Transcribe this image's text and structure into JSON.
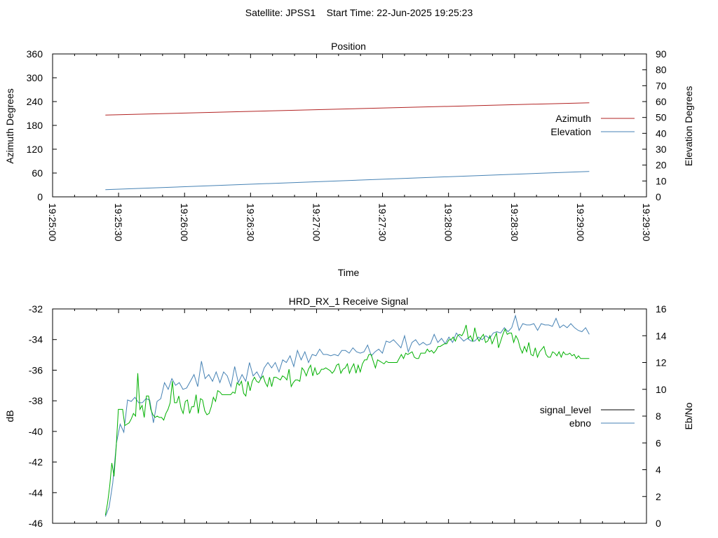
{
  "header": {
    "title": "Satellite: JPSS1    Start Time: 22-Jun-2025 19:25:23"
  },
  "chart_data": [
    {
      "type": "line",
      "title": "Position",
      "xlabel": "Time",
      "ylabel": "Azimuth Degrees",
      "y2label": "Elevation Degrees",
      "xlim": [
        "19:25:00",
        "19:29:30"
      ],
      "ylim": [
        0,
        360
      ],
      "y2lim": [
        0,
        90
      ],
      "x_ticks": [
        "19:25:00",
        "19:25:30",
        "19:26:00",
        "19:26:30",
        "19:27:00",
        "19:27:30",
        "19:28:00",
        "19:28:30",
        "19:29:00",
        "19:29:30"
      ],
      "y_ticks": [
        "0",
        "60",
        "120",
        "180",
        "240",
        "300",
        "360"
      ],
      "y2_ticks": [
        "0",
        "10",
        "20",
        "30",
        "40",
        "50",
        "60",
        "70",
        "80",
        "90"
      ],
      "legend_position": "right",
      "grid": false,
      "series": [
        {
          "name": "Azimuth",
          "axis": "left",
          "color": "#b22222",
          "x": [
            "19:25:24",
            "19:29:04"
          ],
          "values": [
            206,
            237
          ]
        },
        {
          "name": "Elevation",
          "axis": "right",
          "color": "#4682b4",
          "x": [
            "19:25:24",
            "19:29:04"
          ],
          "values": [
            4.5,
            16
          ]
        }
      ]
    },
    {
      "type": "line",
      "title": "HRD_RX_1 Receive Signal",
      "ylabel": "dB",
      "y2label": "Eb/No",
      "ylim": [
        -46,
        -32
      ],
      "y2lim": [
        0,
        16
      ],
      "y_ticks": [
        "-32",
        "-34",
        "-36",
        "-38",
        "-40",
        "-42",
        "-44",
        "-46"
      ],
      "y2_ticks": [
        "0",
        "2",
        "4",
        "6",
        "8",
        "10",
        "12",
        "14",
        "16"
      ],
      "x_range": [
        "19:25:00",
        "19:29:30"
      ],
      "x_start": "19:25:24",
      "x_step_seconds": 2,
      "legend_position": "right",
      "grid": false,
      "series": [
        {
          "name": "signal_level",
          "axis": "left",
          "color": "#000000",
          "legend_only": true,
          "values": []
        },
        {
          "name": "ebno",
          "axis": "right",
          "color": "#4682b4",
          "values": [
            0.5,
            1.2,
            3.0,
            6.0,
            7.4,
            6.8,
            9.2,
            9.1,
            9.4,
            9.0,
            9.0,
            9.3,
            9.2,
            7.5,
            9.1,
            9.3,
            10.5,
            10.0,
            10.8,
            10.3,
            10.5,
            10.0,
            10.1,
            10.6,
            11.1,
            10.2,
            12.1,
            10.8,
            11.1,
            10.6,
            11.3,
            10.5,
            11.3,
            11.0,
            10.2,
            11.7,
            10.5,
            11.1,
            10.6,
            12.0,
            11.0,
            11.3,
            10.8,
            11.6,
            12.0,
            11.6,
            12.0,
            11.3,
            12.2,
            12.0,
            12.5,
            11.7,
            12.9,
            12.2,
            12.8,
            12.0,
            12.6,
            12.5,
            13.0,
            12.6,
            12.6,
            12.5,
            12.6,
            12.5,
            12.9,
            12.9,
            12.7,
            13.1,
            12.8,
            12.7,
            12.8,
            13.3,
            12.5,
            12.8,
            13.0,
            12.7,
            13.6,
            13.5,
            13.7,
            13.4,
            13.1,
            14.0,
            12.8,
            13.5,
            13.7,
            13.3,
            13.5,
            13.3,
            13.4,
            14.1,
            13.5,
            13.8,
            13.4,
            13.9,
            13.5,
            14.2,
            13.9,
            13.6,
            13.8,
            13.6,
            13.6,
            13.9,
            13.7,
            14.0,
            13.8,
            14.2,
            14.3,
            14.2,
            14.6,
            14.3,
            14.6,
            15.5,
            14.4,
            14.9,
            14.8,
            14.8,
            14.9,
            14.4,
            14.9,
            14.8,
            14.8,
            14.7,
            15.3,
            14.6,
            14.8,
            14.6,
            14.9,
            14.6,
            14.4,
            14.3,
            14.6,
            14.1
          ]
        },
        {
          "name": "",
          "axis": "right",
          "color": "#00b000",
          "legend_only": false,
          "values": [
            0.6,
            1.5,
            2.8,
            4.5,
            3.5,
            5.7,
            8.5,
            8.5,
            8.5,
            7.3,
            7.4,
            7.5,
            7.8,
            8.2,
            8.0,
            11.2,
            8.5,
            8.8,
            7.9,
            9.5,
            9.5,
            8.5,
            8.1,
            7.9,
            8.0,
            7.9,
            7.9,
            7.7,
            8.2,
            8.5,
            9.0,
            10.6,
            9.0,
            9.0,
            9.5,
            8.6,
            8.2,
            9.1,
            9.2,
            8.2,
            8.7,
            8.7,
            9.6,
            8.2,
            9.3,
            9.2,
            8.4,
            8.1,
            8.2,
            8.7,
            9.4,
            9.1,
            9.9,
            9.8,
            9.6,
            9.6,
            9.6,
            9.6,
            9.6,
            9.8,
            9.7,
            10.5,
            10.3,
            10.6,
            9.7,
            9.5,
            10.6,
            9.9,
            10.6,
            10.9,
            10.6,
            10.5,
            10.8,
            11.0,
            10.5,
            10.2,
            10.9,
            10.2,
            10.9,
            10.9,
            10.8,
            10.7,
            11.0,
            10.9,
            10.7,
            11.5,
            10.2,
            10.5,
            10.7,
            10.7,
            10.6,
            11.6,
            11.4,
            11.0,
            11.5,
            11.8,
            11.0,
            11.6,
            11.1,
            11.2,
            11.5,
            11.5,
            11.6,
            11.5,
            11.4,
            11.2,
            11.4,
            11.8,
            11.9,
            11.2,
            11.5,
            11.6,
            11.9,
            11.2,
            11.6,
            11.9,
            11.2,
            11.8,
            11.3,
            11.9,
            12.2,
            12.2,
            12.6,
            12.6,
            12.1,
            11.6,
            12.2,
            12.1,
            12.0,
            11.9,
            12.1,
            12.0,
            12.0,
            12.0,
            12.0,
            12.0,
            12.3,
            12.6,
            12.3,
            12.7,
            12.6,
            12.7,
            12.8,
            12.4,
            12.3,
            12.3,
            12.7,
            12.7,
            12.7,
            13.0,
            12.8,
            12.9,
            12.7,
            12.9,
            13.2,
            13.2,
            13.3,
            13.4,
            13.4,
            13.7,
            13.7,
            13.9,
            13.6,
            14.0,
            14.1,
            14.0,
            14.3,
            14.8,
            13.8,
            14.0,
            13.6,
            14.6,
            13.9,
            13.6,
            13.9,
            14.1,
            13.5,
            13.6,
            14.0,
            13.4,
            13.8,
            14.2,
            13.1,
            13.6,
            14.1,
            14.5,
            14.1,
            14.2,
            14.2,
            13.5,
            14.0,
            13.7,
            13.1,
            12.7,
            13.2,
            12.8,
            13.5,
            12.6,
            12.5,
            13.1,
            12.4,
            12.8,
            13.0,
            13.2,
            12.6,
            12.4,
            12.4,
            12.8,
            12.7,
            12.5,
            12.8,
            12.4,
            12.8,
            12.6,
            12.6,
            12.7,
            12.5,
            12.6,
            12.3,
            12.5,
            12.3,
            12.3,
            12.3,
            12.3,
            12.3
          ]
        }
      ]
    }
  ]
}
